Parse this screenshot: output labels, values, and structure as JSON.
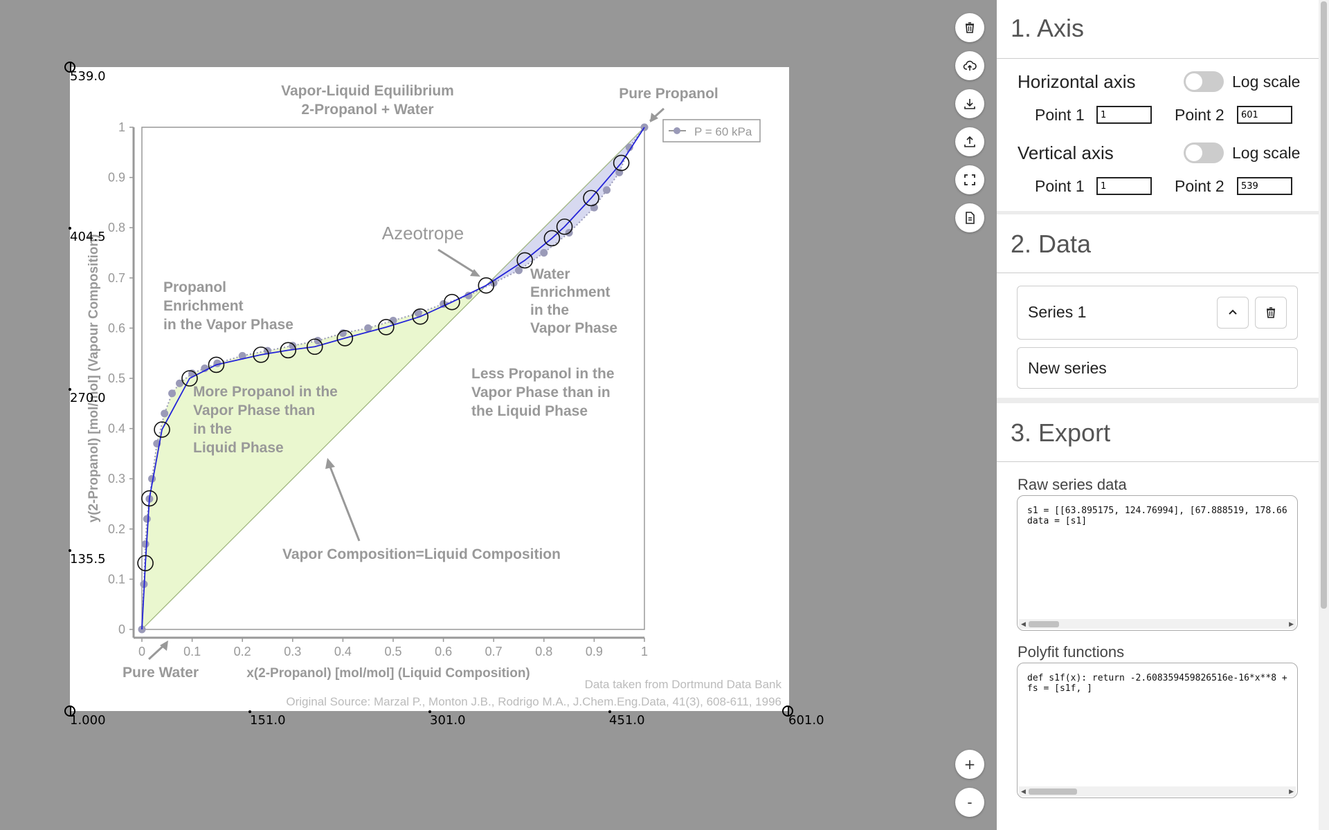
{
  "canvas": {
    "y_calibration_labels": [
      "539.0",
      "404.5",
      "270.0",
      "135.5"
    ],
    "x_calibration_labels": [
      "1.000",
      "151.0",
      "301.0",
      "451.0",
      "601.0"
    ]
  },
  "chart_data": {
    "type": "line",
    "title": "Vapor-Liquid Equilibrium\n2-Propanol + Water",
    "title_line1": "Vapor-Liquid Equilibrium",
    "title_line2": "2-Propanol + Water",
    "xlabel": "x(2-Propanol) [mol/mol] (Liquid Composition)",
    "ylabel": "y(2-Propanol) [mol/mol] (Vapour Composition)",
    "xlim": [
      0,
      1
    ],
    "ylim": [
      0,
      1
    ],
    "x_ticks": [
      "0",
      "0.1",
      "0.2",
      "0.3",
      "0.4",
      "0.5",
      "0.6",
      "0.7",
      "0.8",
      "0.9",
      "1"
    ],
    "y_ticks": [
      "0",
      "0.1",
      "0.2",
      "0.3",
      "0.4",
      "0.5",
      "0.6",
      "0.7",
      "0.8",
      "0.9",
      "1"
    ],
    "legend": {
      "label": "P = 60 kPa",
      "placement": "top-right"
    },
    "annotations": {
      "pure_propanol": "Pure Propanol",
      "pure_water": "Pure Water",
      "azeotrope": "Azeotrope",
      "propanol_enrich": [
        "Propanol",
        "Enrichment",
        "in the Vapor Phase"
      ],
      "water_enrich": [
        "Water",
        "Enrichment",
        "in the",
        "Vapor Phase"
      ],
      "more_propanol": [
        "More Propanol in the",
        "Vapor Phase than",
        "in the",
        "Liquid Phase"
      ],
      "less_propanol": [
        "Less Propanol in the",
        "Vapor Phase than in",
        "the Liquid Phase"
      ],
      "equal_line": "Vapor Composition=Liquid Composition",
      "source1": "Data taken from Dortmund Data Bank",
      "source2": "Original Source: Marzal P., Monton J.B., Rodrigo M.A., J.Chem.Eng.Data, 41(3), 608-611, 1996"
    },
    "series": [
      {
        "name": "P = 60 kPa",
        "x": [
          0,
          0.004,
          0.007,
          0.01,
          0.015,
          0.02,
          0.03,
          0.045,
          0.06,
          0.075,
          0.1,
          0.125,
          0.15,
          0.2,
          0.25,
          0.3,
          0.35,
          0.4,
          0.45,
          0.5,
          0.55,
          0.6,
          0.65,
          0.7,
          0.75,
          0.8,
          0.85,
          0.9,
          0.925,
          0.95,
          0.97,
          1.0
        ],
        "y": [
          0,
          0.09,
          0.17,
          0.22,
          0.26,
          0.3,
          0.37,
          0.43,
          0.47,
          0.49,
          0.51,
          0.52,
          0.53,
          0.545,
          0.555,
          0.565,
          0.575,
          0.59,
          0.6,
          0.615,
          0.63,
          0.648,
          0.665,
          0.69,
          0.715,
          0.75,
          0.79,
          0.84,
          0.875,
          0.91,
          0.96,
          1.0
        ]
      },
      {
        "name": "Series 1",
        "x": [
          0,
          0.007,
          0.015,
          0.04,
          0.095,
          0.148,
          0.237,
          0.291,
          0.344,
          0.404,
          0.486,
          0.554,
          0.617,
          0.685,
          0.762,
          0.816,
          0.841,
          0.894,
          0.954,
          1.0
        ],
        "y": [
          0,
          0.132,
          0.261,
          0.398,
          0.5,
          0.527,
          0.547,
          0.556,
          0.563,
          0.58,
          0.602,
          0.623,
          0.652,
          0.685,
          0.735,
          0.779,
          0.802,
          0.859,
          0.929,
          1.0
        ]
      }
    ]
  },
  "panel": {
    "axis": {
      "title": "1. Axis",
      "horizontal_label": "Horizontal axis",
      "vertical_label": "Vertical axis",
      "log_label": "Log scale",
      "point1_label": "Point 1",
      "point2_label": "Point 2",
      "h_point1": "1",
      "h_point2": "601",
      "v_point1": "1",
      "v_point2": "539"
    },
    "data": {
      "title": "2. Data",
      "series_name": "Series 1",
      "new_series": "New series"
    },
    "export": {
      "title": "3. Export",
      "raw_title": "Raw series data",
      "raw_code_line1": "s1 = [[63.895175, 124.76994], [67.888519, 178.66",
      "raw_code_line2": "data = [s1]",
      "poly_title": "Polyfit functions",
      "poly_code_line1": "def s1f(x): return -2.608359459826516e-16*x**8 +",
      "poly_code_line2": "fs = [s1f, ]"
    }
  },
  "toolbar": {
    "icons": [
      "trash-icon",
      "cloud-upload-icon",
      "download-icon",
      "upload-icon",
      "fullscreen-icon",
      "document-icon"
    ],
    "zoom_in": "+",
    "zoom_out": "-"
  }
}
